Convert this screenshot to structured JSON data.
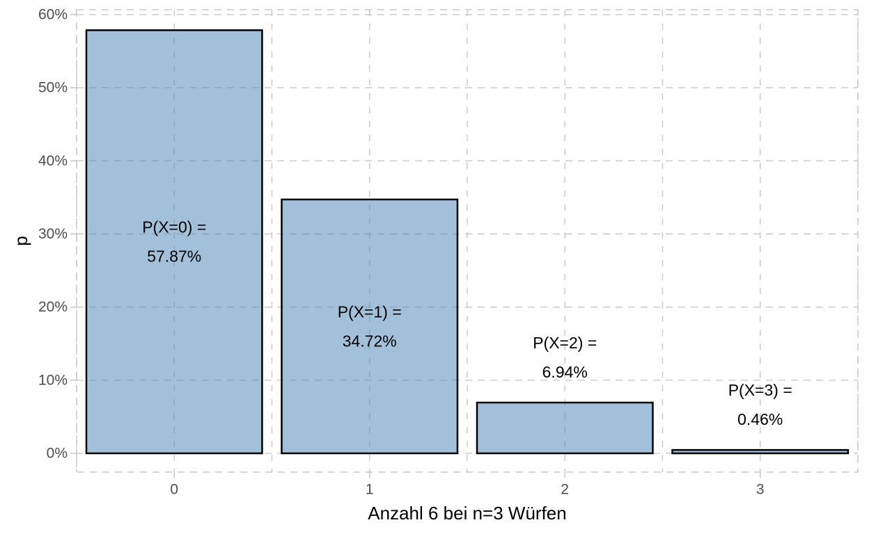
{
  "chart_data": {
    "type": "bar",
    "title": "",
    "xlabel": "Anzahl 6 bei n=3 Würfen",
    "ylabel": "p",
    "categories": [
      "0",
      "1",
      "2",
      "3"
    ],
    "values": [
      57.87,
      34.72,
      6.94,
      0.46
    ],
    "bars": [
      {
        "category": "0",
        "value": 57.87,
        "label_line1": "P(X=0) =",
        "label_line2": "57.87%",
        "label_position": "inside"
      },
      {
        "category": "1",
        "value": 34.72,
        "label_line1": "P(X=1) =",
        "label_line2": "34.72%",
        "label_position": "inside"
      },
      {
        "category": "2",
        "value": 6.94,
        "label_line1": "P(X=2) =",
        "label_line2": "6.94%",
        "label_position": "above"
      },
      {
        "category": "3",
        "value": 0.46,
        "label_line1": "P(X=3) =",
        "label_line2": "0.46%",
        "label_position": "above"
      }
    ],
    "y_tick_values": [
      0,
      10,
      20,
      30,
      40,
      50,
      60
    ],
    "y_tick_labels": [
      "0%",
      "10%",
      "20%",
      "30%",
      "40%",
      "50%",
      "60%"
    ],
    "ylim": [
      -2.57,
      60.67
    ],
    "bar_width_fraction": 0.9,
    "grid": {
      "visible": true,
      "style": "dashed",
      "color": "#c8c8c8",
      "vertical_minor_between_categories": true
    },
    "legend": "none",
    "colors": {
      "background": "#ffffff",
      "bar_fill": "#4682b4",
      "bar_fill_opacity": 0.5,
      "bar_stroke": "#000000",
      "tick_label": "#4d4d4d",
      "axis_title": "#000000",
      "gridline": "#c8c8c8"
    }
  }
}
